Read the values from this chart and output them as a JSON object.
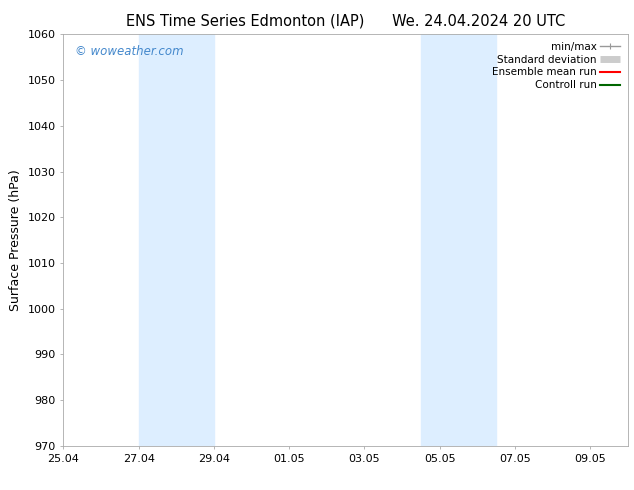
{
  "title_left": "ENS Time Series Edmonton (IAP)",
  "title_right": "We. 24.04.2024 20 UTC",
  "ylabel": "Surface Pressure (hPa)",
  "ylim": [
    970,
    1060
  ],
  "yticks": [
    970,
    980,
    990,
    1000,
    1010,
    1020,
    1030,
    1040,
    1050,
    1060
  ],
  "xlim": [
    0,
    15
  ],
  "xtick_labels": [
    "25.04",
    "27.04",
    "29.04",
    "01.05",
    "03.05",
    "05.05",
    "07.05",
    "09.05"
  ],
  "xtick_positions": [
    0,
    2,
    4,
    6,
    8,
    10,
    12,
    14
  ],
  "shaded_bands": [
    {
      "x_start": 2,
      "x_end": 4,
      "color": "#ddeeff"
    },
    {
      "x_start": 9.5,
      "x_end": 11.5,
      "color": "#ddeeff"
    }
  ],
  "watermark": "© woweather.com",
  "watermark_color": "#4488cc",
  "legend_items": [
    {
      "label": "min/max",
      "color": "#999999",
      "lw": 1.0
    },
    {
      "label": "Standard deviation",
      "color": "#cccccc",
      "lw": 5
    },
    {
      "label": "Ensemble mean run",
      "color": "#ff0000",
      "lw": 1.5
    },
    {
      "label": "Controll run",
      "color": "#006600",
      "lw": 1.5
    }
  ],
  "bg_color": "#ffffff",
  "plot_bg_color": "#ffffff",
  "title_fontsize": 10.5,
  "tick_fontsize": 8,
  "label_fontsize": 9,
  "legend_fontsize": 7.5
}
